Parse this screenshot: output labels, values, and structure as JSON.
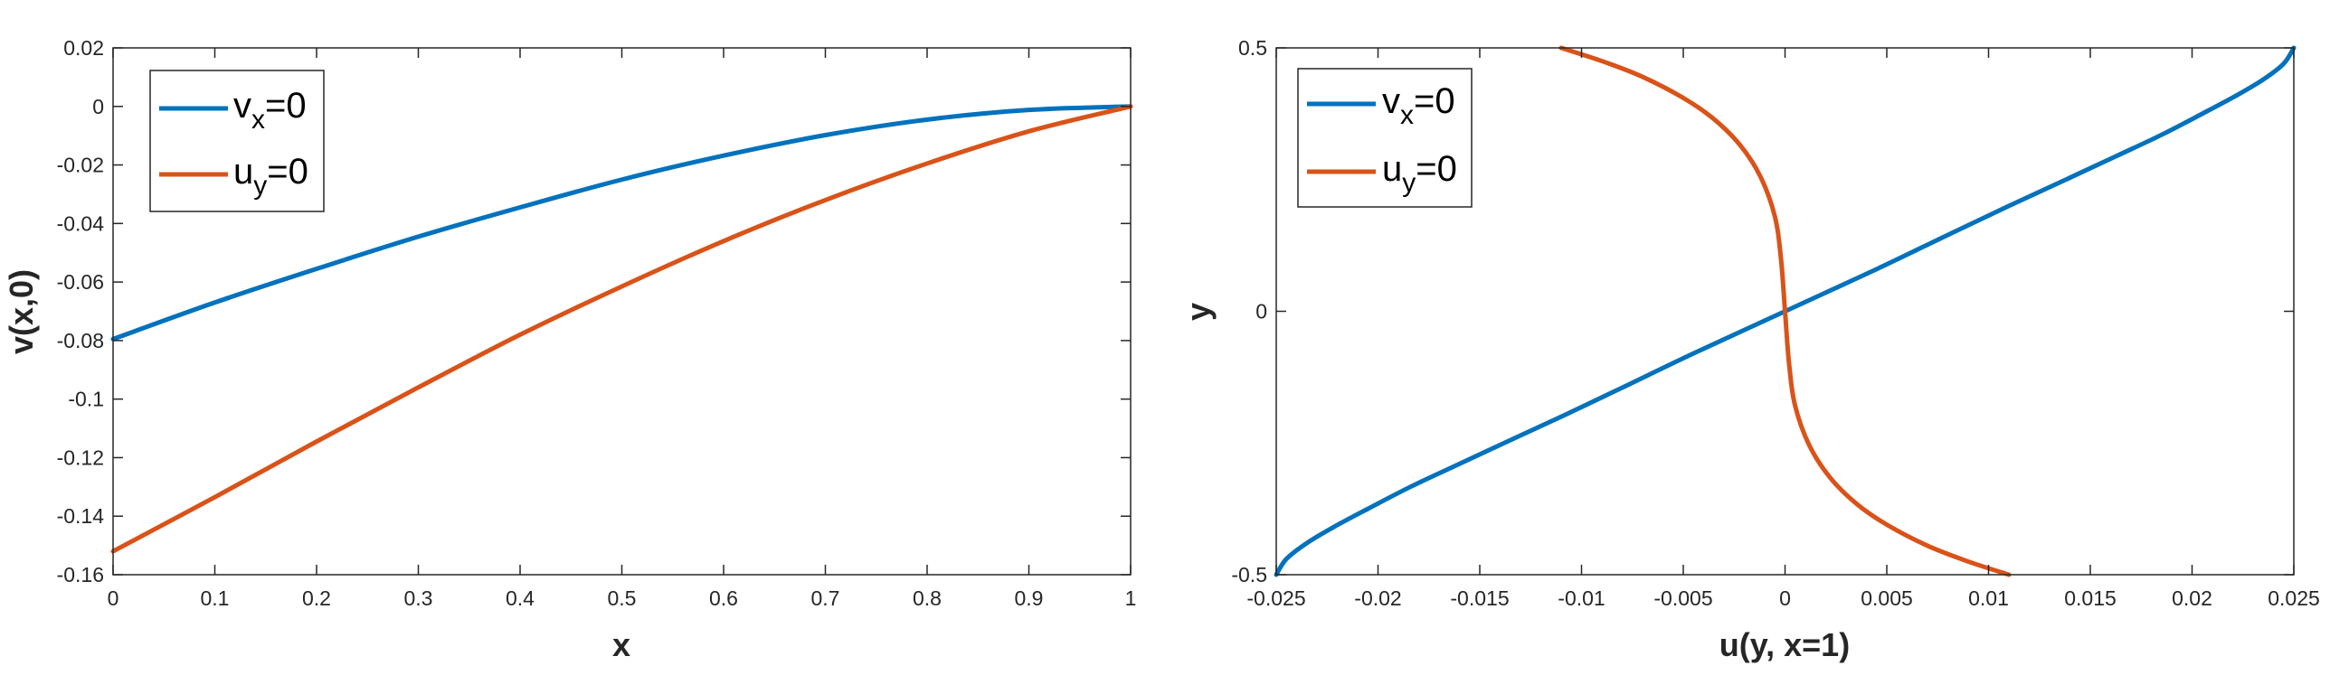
{
  "chart_data": [
    {
      "type": "line",
      "xlabel": "x",
      "ylabel": "v(x,0)",
      "xlim": [
        0,
        1
      ],
      "ylim": [
        -0.16,
        0.02
      ],
      "xticks": [
        0,
        0.1,
        0.2,
        0.3,
        0.4,
        0.5,
        0.6,
        0.7,
        0.8,
        0.9,
        1
      ],
      "xtick_labels": [
        "0",
        "0.1",
        "0.2",
        "0.3",
        "0.4",
        "0.5",
        "0.6",
        "0.7",
        "0.8",
        "0.9",
        "1"
      ],
      "yticks": [
        -0.16,
        -0.14,
        -0.12,
        -0.1,
        -0.08,
        -0.06,
        -0.04,
        -0.02,
        0,
        0.02
      ],
      "ytick_labels": [
        "-0.16",
        "-0.14",
        "-0.12",
        "-0.1",
        "-0.08",
        "-0.06",
        "-0.04",
        "-0.02",
        "0",
        "0.02"
      ],
      "legend_position": "top-left",
      "grid": false,
      "series": [
        {
          "name": "v_x=0",
          "legend_main": "v",
          "legend_sub": "x",
          "legend_rest": "=0",
          "color": "#0072BD",
          "x": [
            0,
            0.1,
            0.2,
            0.3,
            0.4,
            0.5,
            0.6,
            0.7,
            0.8,
            0.9,
            1
          ],
          "y": [
            -0.0795,
            -0.067,
            -0.0555,
            -0.0445,
            -0.0345,
            -0.025,
            -0.0168,
            -0.0098,
            -0.0045,
            -0.0012,
            0
          ]
        },
        {
          "name": "u_y=0",
          "legend_main": "u",
          "legend_sub": "y",
          "legend_rest": "=0",
          "color": "#D95319",
          "x": [
            0,
            0.1,
            0.2,
            0.3,
            0.4,
            0.5,
            0.6,
            0.7,
            0.8,
            0.9,
            1
          ],
          "y": [
            -0.152,
            -0.1335,
            -0.1145,
            -0.096,
            -0.078,
            -0.0615,
            -0.046,
            -0.032,
            -0.0195,
            -0.0085,
            0
          ]
        }
      ]
    },
    {
      "type": "line",
      "xlabel": "u(y, x=1)",
      "ylabel": "y",
      "xlim": [
        -0.025,
        0.025
      ],
      "ylim": [
        -0.5,
        0.5
      ],
      "xticks": [
        -0.025,
        -0.02,
        -0.015,
        -0.01,
        -0.005,
        0,
        0.005,
        0.01,
        0.015,
        0.02,
        0.025
      ],
      "xtick_labels": [
        "-0.025",
        "-0.02",
        "-0.015",
        "-0.01",
        "-0.005",
        "0",
        "0.005",
        "0.01",
        "0.015",
        "0.02",
        "0.025"
      ],
      "yticks": [
        -0.5,
        0,
        0.5
      ],
      "ytick_labels": [
        "-0.5",
        "0",
        "0.5"
      ],
      "legend_position": "top-left",
      "grid": false,
      "series": [
        {
          "name": "v_x=0",
          "legend_main": "v",
          "legend_sub": "x",
          "legend_rest": "=0",
          "color": "#0072BD",
          "x": [
            -0.025,
            -0.0245,
            -0.0235,
            -0.0222,
            -0.0205,
            -0.0185,
            -0.0163,
            -0.0138,
            -0.011,
            -0.008,
            -0.0045,
            0,
            0.0045,
            0.008,
            0.011,
            0.0138,
            0.0163,
            0.0185,
            0.0205,
            0.0222,
            0.0235,
            0.0245,
            0.025
          ],
          "y": [
            -0.5,
            -0.47,
            -0.44,
            -0.41,
            -0.375,
            -0.335,
            -0.295,
            -0.25,
            -0.2,
            -0.145,
            -0.08,
            0,
            0.08,
            0.145,
            0.2,
            0.25,
            0.295,
            0.335,
            0.375,
            0.41,
            0.44,
            0.47,
            0.5
          ]
        },
        {
          "name": "u_y=0",
          "legend_main": "u",
          "legend_sub": "y",
          "legend_rest": "=0",
          "color": "#D95319",
          "x": [
            -0.011,
            -0.009,
            -0.007,
            -0.005,
            -0.0035,
            -0.0022,
            -0.0012,
            -0.0005,
            -0.0002,
            0,
            0.0002,
            0.0005,
            0.0012,
            0.0022,
            0.0035,
            0.005,
            0.007,
            0.009,
            0.011
          ],
          "y": [
            0.5,
            0.475,
            0.445,
            0.405,
            0.365,
            0.315,
            0.255,
            0.18,
            0.1,
            0,
            -0.1,
            -0.18,
            -0.255,
            -0.315,
            -0.365,
            -0.405,
            -0.445,
            -0.475,
            -0.5
          ]
        }
      ]
    }
  ]
}
